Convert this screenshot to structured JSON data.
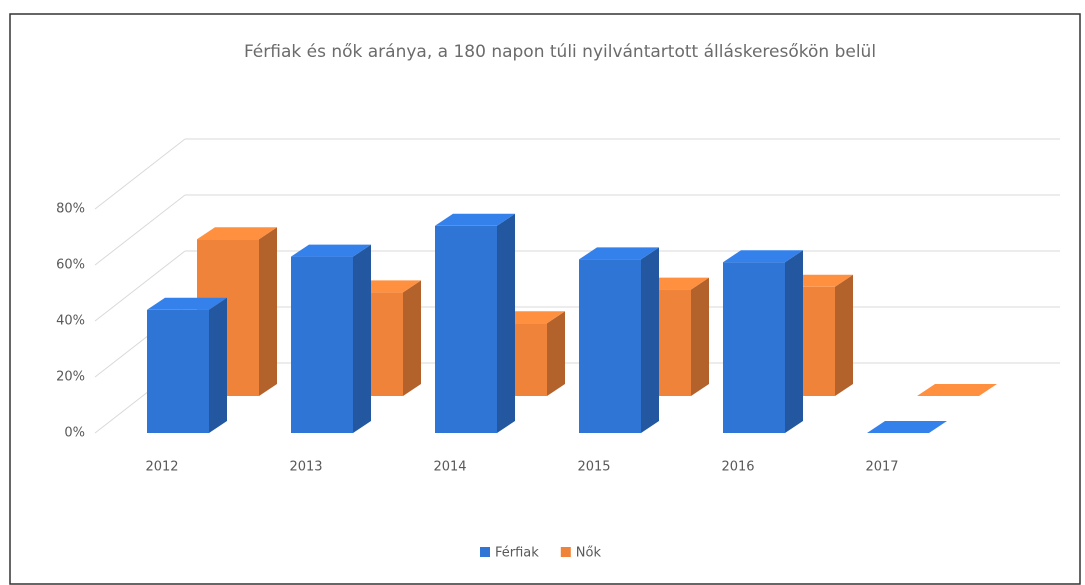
{
  "chart_data": {
    "type": "bar3d",
    "title": "Férfiak és nők aránya, a 180 napon túli nyilvántartott álláskeresőkön belül",
    "categories": [
      "2012",
      "2013",
      "2014",
      "2015",
      "2016",
      "2017"
    ],
    "series": [
      {
        "name": "Férfiak",
        "color": "#2f75d6",
        "values": [
          44,
          63,
          74,
          62,
          61,
          0
        ]
      },
      {
        "name": "Nők",
        "color": "#f0833a",
        "values": [
          56,
          37,
          26,
          38,
          39,
          0
        ]
      }
    ],
    "ylim": [
      0,
      80
    ],
    "yticks": [
      {
        "value": 0,
        "label": "0%"
      },
      {
        "value": 20,
        "label": "20%"
      },
      {
        "value": 40,
        "label": "40%"
      },
      {
        "value": 60,
        "label": "60%"
      },
      {
        "value": 80,
        "label": "80%"
      }
    ],
    "grid": true,
    "legend": "bottom"
  }
}
